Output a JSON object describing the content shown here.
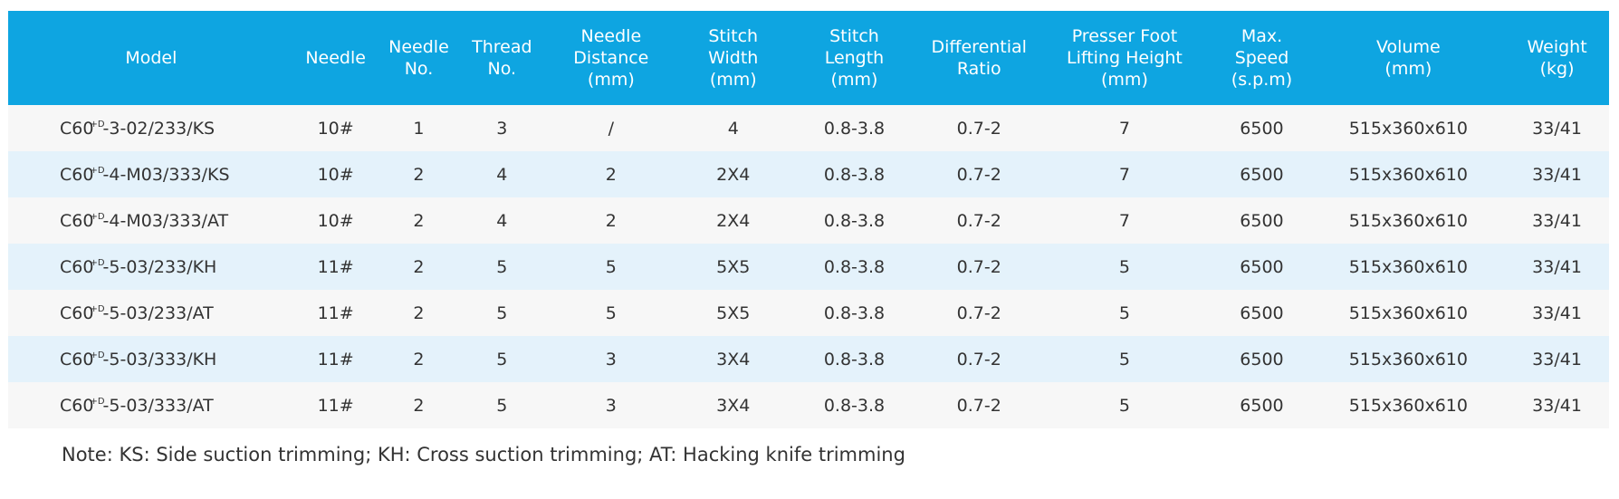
{
  "table": {
    "headers": [
      [
        "Model"
      ],
      [
        "Needle"
      ],
      [
        "Needle",
        "No."
      ],
      [
        "Thread",
        "No."
      ],
      [
        "Needle",
        "Distance",
        "(mm)"
      ],
      [
        "Stitch",
        "Width",
        "(mm)"
      ],
      [
        "Stitch",
        "Length",
        "(mm)"
      ],
      [
        "Differential",
        "Ratio"
      ],
      [
        "Presser Foot",
        "Lifting Height",
        "(mm)"
      ],
      [
        "Max.",
        "Speed",
        "(s.p.m)"
      ],
      [
        "Volume",
        "(mm)"
      ],
      [
        "Weight",
        "(kg)"
      ]
    ],
    "model_superscript": "+D",
    "rows": [
      {
        "model_base": "C60",
        "model_rest": "-3-02/233/KS",
        "cells": [
          "10#",
          "1",
          "3",
          "/",
          "4",
          "0.8-3.8",
          "0.7-2",
          "7",
          "6500",
          "515x360x610",
          "33/41"
        ]
      },
      {
        "model_base": "C60",
        "model_rest": "-4-M03/333/KS",
        "cells": [
          "10#",
          "2",
          "4",
          "2",
          "2X4",
          "0.8-3.8",
          "0.7-2",
          "7",
          "6500",
          "515x360x610",
          "33/41"
        ]
      },
      {
        "model_base": "C60",
        "model_rest": "-4-M03/333/AT",
        "cells": [
          "10#",
          "2",
          "4",
          "2",
          "2X4",
          "0.8-3.8",
          "0.7-2",
          "7",
          "6500",
          "515x360x610",
          "33/41"
        ]
      },
      {
        "model_base": "C60",
        "model_rest": "-5-03/233/KH",
        "cells": [
          "11#",
          "2",
          "5",
          "5",
          "5X5",
          "0.8-3.8",
          "0.7-2",
          "5",
          "6500",
          "515x360x610",
          "33/41"
        ]
      },
      {
        "model_base": "C60",
        "model_rest": "-5-03/233/AT",
        "cells": [
          "11#",
          "2",
          "5",
          "5",
          "5X5",
          "0.8-3.8",
          "0.7-2",
          "5",
          "6500",
          "515x360x610",
          "33/41"
        ]
      },
      {
        "model_base": "C60",
        "model_rest": "-5-03/333/KH",
        "cells": [
          "11#",
          "2",
          "5",
          "3",
          "3X4",
          "0.8-3.8",
          "0.7-2",
          "5",
          "6500",
          "515x360x610",
          "33/41"
        ]
      },
      {
        "model_base": "C60",
        "model_rest": "-5-03/333/AT",
        "cells": [
          "11#",
          "2",
          "5",
          "3",
          "3X4",
          "0.8-3.8",
          "0.7-2",
          "5",
          "6500",
          "515x360x610",
          "33/41"
        ]
      }
    ]
  },
  "note": "Note: KS: Side suction trimming; KH: Cross suction trimming; AT: Hacking knife trimming",
  "colors": {
    "header_bg": "#0ea5e1",
    "row_odd_bg": "#f7f7f7",
    "row_even_bg": "#e4f2fb",
    "text": "#333333"
  }
}
